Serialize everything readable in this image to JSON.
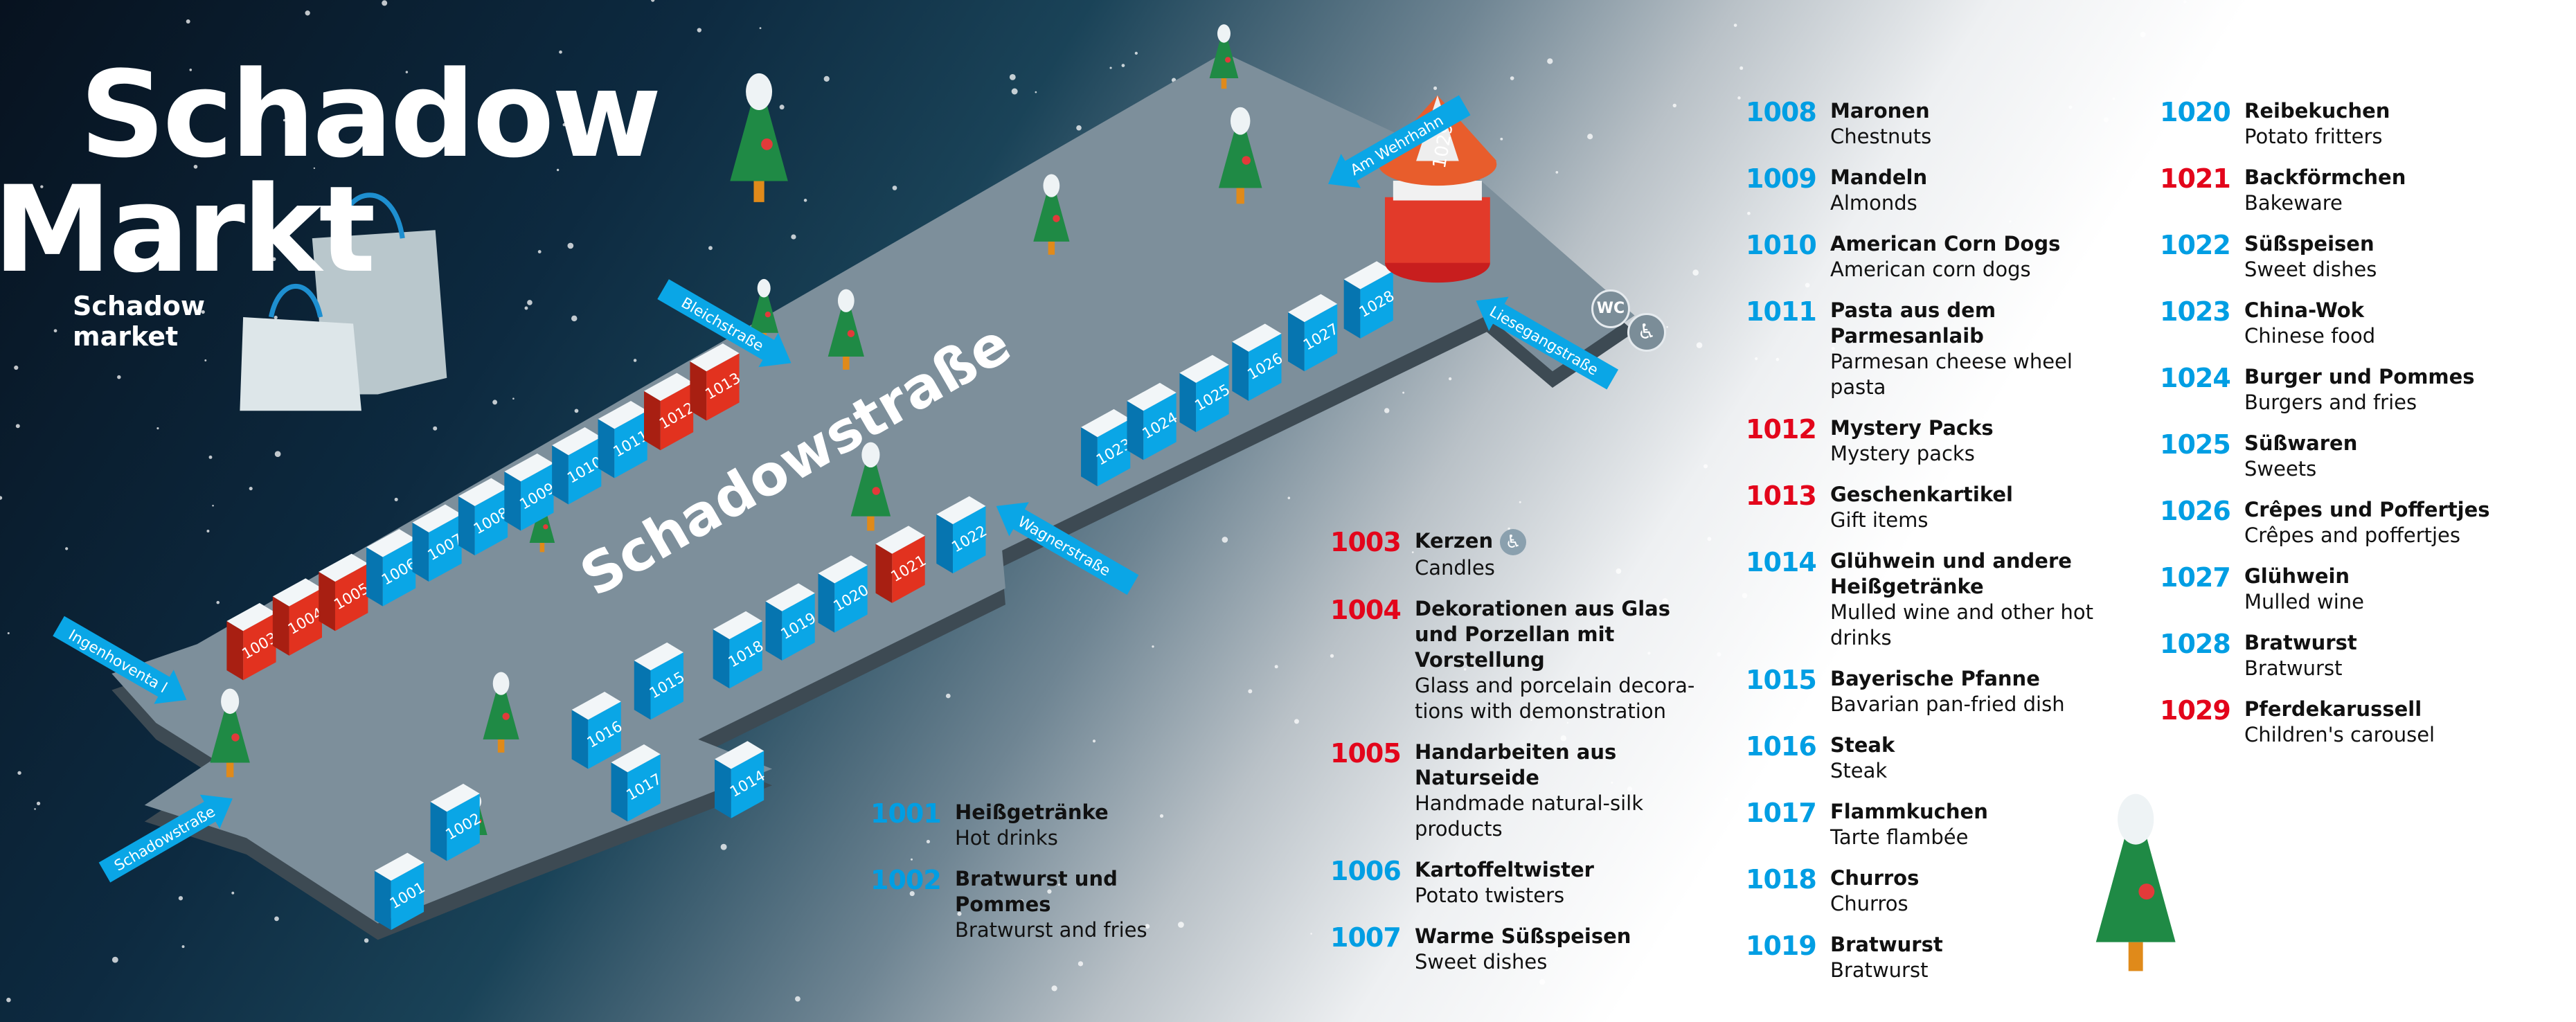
{
  "title": {
    "line1": "Schadow",
    "line2": "Markt",
    "subtitle": "Schadow market"
  },
  "colors": {
    "craft": "#e3051b",
    "food": "#009ee3",
    "street": "#7d8f9b",
    "stall_red": "#e2321f",
    "stall_blue": "#0aa6e6"
  },
  "map": {
    "main_street": "Schadowstraße",
    "streets": [
      "Bleichstraße",
      "Am Wehrhahn",
      "Liesegangstraße",
      "Wagnerstraße",
      "Ingenhoventa l",
      "Schadowstraße"
    ],
    "stalls": [
      {
        "num": "1001",
        "type": "food"
      },
      {
        "num": "1002",
        "type": "food"
      },
      {
        "num": "1003",
        "type": "craft"
      },
      {
        "num": "1004",
        "type": "craft"
      },
      {
        "num": "1005",
        "type": "craft"
      },
      {
        "num": "1006",
        "type": "food"
      },
      {
        "num": "1007",
        "type": "food"
      },
      {
        "num": "1008",
        "type": "food"
      },
      {
        "num": "1009",
        "type": "food"
      },
      {
        "num": "1010",
        "type": "food"
      },
      {
        "num": "1011",
        "type": "food"
      },
      {
        "num": "1012",
        "type": "craft"
      },
      {
        "num": "1013",
        "type": "craft"
      },
      {
        "num": "1014",
        "type": "food"
      },
      {
        "num": "1015",
        "type": "food"
      },
      {
        "num": "1016",
        "type": "food"
      },
      {
        "num": "1017",
        "type": "food"
      },
      {
        "num": "1018",
        "type": "food"
      },
      {
        "num": "1019",
        "type": "food"
      },
      {
        "num": "1020",
        "type": "food"
      },
      {
        "num": "1021",
        "type": "craft"
      },
      {
        "num": "1022",
        "type": "food"
      },
      {
        "num": "1023",
        "type": "food"
      },
      {
        "num": "1024",
        "type": "food"
      },
      {
        "num": "1025",
        "type": "food"
      },
      {
        "num": "1026",
        "type": "food"
      },
      {
        "num": "1027",
        "type": "food"
      },
      {
        "num": "1028",
        "type": "food"
      },
      {
        "num": "1029",
        "type": "craft"
      }
    ],
    "wc_label": "WC",
    "icons": [
      "toilet-icon",
      "wheelchair-toilet-icon",
      "christmas-tree-icon",
      "shopping-bag-icon",
      "carousel-icon"
    ]
  },
  "legend": {
    "col1": [
      {
        "num": "1001",
        "type": "food",
        "name": "Heißgetränke",
        "en": "Hot drinks"
      },
      {
        "num": "1002",
        "type": "food",
        "name": "Bratwurst und Pommes",
        "en": "Bratwurst and fries"
      }
    ],
    "col2": [
      {
        "num": "1003",
        "type": "craft",
        "name": "Kerzen",
        "en": "Candles",
        "accessible": true
      },
      {
        "num": "1004",
        "type": "craft",
        "name": "Dekorationen aus Glas und Porzellan mit Vorstellung",
        "en": "Glass and porcelain decora-tions with demonstration"
      },
      {
        "num": "1005",
        "type": "craft",
        "name": "Handarbeiten aus Naturseide",
        "en": "Handmade natural-silk products"
      },
      {
        "num": "1006",
        "type": "food",
        "name": "Kartoffeltwister",
        "en": "Potato twisters"
      },
      {
        "num": "1007",
        "type": "food",
        "name": "Warme Süßspeisen",
        "en": "Sweet dishes"
      }
    ],
    "col3": [
      {
        "num": "1008",
        "type": "food",
        "name": "Maronen",
        "en": "Chestnuts"
      },
      {
        "num": "1009",
        "type": "food",
        "name": "Mandeln",
        "en": "Almonds"
      },
      {
        "num": "1010",
        "type": "food",
        "name": "American Corn Dogs",
        "en": "American corn dogs"
      },
      {
        "num": "1011",
        "type": "food",
        "name": "Pasta aus dem Parmesanlaib",
        "en": "Parmesan cheese wheel pasta"
      },
      {
        "num": "1012",
        "type": "craft",
        "name": "Mystery Packs",
        "en": "Mystery packs"
      },
      {
        "num": "1013",
        "type": "craft",
        "name": "Geschenkartikel",
        "en": "Gift items"
      },
      {
        "num": "1014",
        "type": "food",
        "name": "Glühwein und andere Heißgetränke",
        "en": "Mulled wine and other hot drinks"
      },
      {
        "num": "1015",
        "type": "food",
        "name": "Bayerische Pfanne",
        "en": "Bavarian pan-fried dish"
      },
      {
        "num": "1016",
        "type": "food",
        "name": "Steak",
        "en": "Steak"
      },
      {
        "num": "1017",
        "type": "food",
        "name": "Flammkuchen",
        "en": "Tarte flambée"
      },
      {
        "num": "1018",
        "type": "food",
        "name": "Churros",
        "en": "Churros"
      },
      {
        "num": "1019",
        "type": "food",
        "name": "Bratwurst",
        "en": "Bratwurst"
      }
    ],
    "col4": [
      {
        "num": "1020",
        "type": "food",
        "name": "Reibekuchen",
        "en": "Potato fritters"
      },
      {
        "num": "1021",
        "type": "craft",
        "name": "Backförmchen",
        "en": "Bakeware"
      },
      {
        "num": "1022",
        "type": "food",
        "name": "Süßspeisen",
        "en": "Sweet dishes"
      },
      {
        "num": "1023",
        "type": "food",
        "name": "China-Wok",
        "en": "Chinese food"
      },
      {
        "num": "1024",
        "type": "food",
        "name": "Burger und Pommes",
        "en": "Burgers and fries"
      },
      {
        "num": "1025",
        "type": "food",
        "name": "Süßwaren",
        "en": "Sweets"
      },
      {
        "num": "1026",
        "type": "food",
        "name": "Crêpes und Poffertjes",
        "en": "Crêpes and poffertjes"
      },
      {
        "num": "1027",
        "type": "food",
        "name": "Glühwein",
        "en": "Mulled wine"
      },
      {
        "num": "1028",
        "type": "food",
        "name": "Bratwurst",
        "en": "Bratwurst"
      },
      {
        "num": "1029",
        "type": "craft",
        "name": "Pferdekarussell",
        "en": "Children's carousel"
      }
    ]
  }
}
